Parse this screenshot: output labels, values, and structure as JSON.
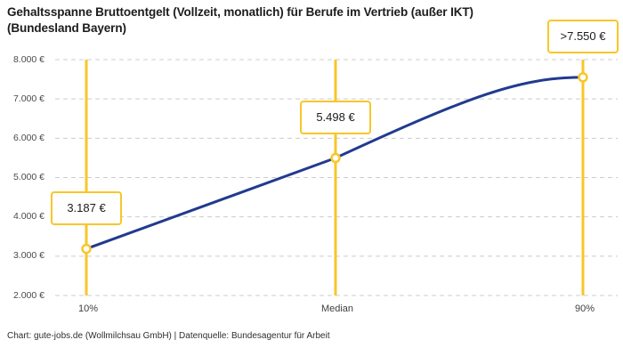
{
  "title": "Gehaltsspanne Bruttoentgelt (Vollzeit, monatlich) für Berufe im Vertrieb (außer IKT)\n(Bundesland Bayern)",
  "footer": {
    "text": "Chart: gute-jobs.de (Wollmilchsau GmbH) | Datenquelle: Bundesagentur für Arbeit"
  },
  "chart_data": {
    "type": "line",
    "title": "Gehaltsspanne Bruttoentgelt (Vollzeit, monatlich) für Berufe im Vertrieb (außer IKT) (Bundesland Bayern)",
    "xlabel": "",
    "ylabel": "",
    "ylim": [
      2000,
      8000
    ],
    "grid": "horizontal-dashed",
    "legend": "none",
    "y_tick_labels": [
      "8.000 €",
      "7.000 €",
      "6.000 €",
      "5.000 €",
      "4.000 €",
      "3.000 €",
      "2.000 €"
    ],
    "categories": [
      "10%",
      "Median",
      "90%"
    ],
    "values": [
      3187,
      5498,
      7550
    ],
    "points": [
      {
        "x_label": "10%",
        "value": 3187,
        "label": "3.187 €"
      },
      {
        "x_label": "Median",
        "value": 5498,
        "label": "5.498 €"
      },
      {
        "x_label": "90%",
        "value": 7550,
        "label": ">7.550 €"
      }
    ],
    "series_color": "#223a8f",
    "accent_color": "#f8c628",
    "gridline_color": "#cccccc"
  }
}
